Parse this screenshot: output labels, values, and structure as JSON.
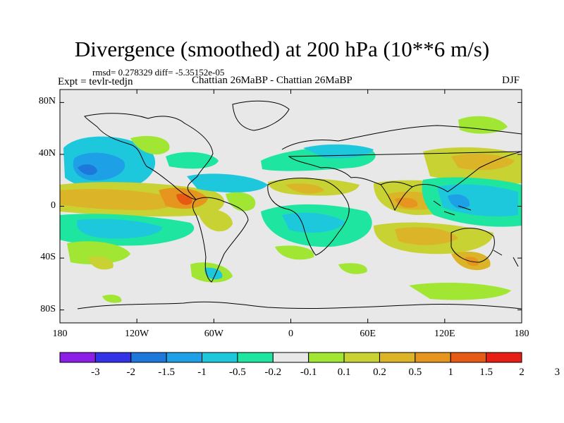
{
  "title": "Divergence (smoothed) at 200 hPa (10**6 m/s)",
  "stats": "rmsd= 0.278329 diff= -5.35152e-05",
  "experiment": "Expt = tevlr-tedjn",
  "case": "Chattian  26MaBP - Chattian  26MaBP",
  "season": "DJF",
  "map": {
    "lon_range": [
      -180,
      180
    ],
    "lat_range": [
      -90,
      90
    ],
    "x_ticks": [
      "180",
      "120W",
      "60W",
      "0",
      "60E",
      "120E",
      "180"
    ],
    "y_ticks": [
      "80N",
      "40N",
      "0",
      "40S",
      "80S"
    ],
    "background_color": "#e8e8e8",
    "coastline_color": "#000000"
  },
  "colorbar": {
    "colors": [
      "#8c1ee6",
      "#3232e6",
      "#1e78dc",
      "#1ea0e6",
      "#1ec8dc",
      "#1ee6a0",
      "#e8e8e8",
      "#a0e632",
      "#c8d232",
      "#dcb428",
      "#e6961e",
      "#e65a14",
      "#e61e14"
    ],
    "labels": [
      "-3",
      "-2",
      "-1.5",
      "-1",
      "-0.5",
      "-0.2",
      "-0.1",
      "0.1",
      "0.2",
      "0.5",
      "1",
      "1.5",
      "2",
      "3"
    ]
  }
}
